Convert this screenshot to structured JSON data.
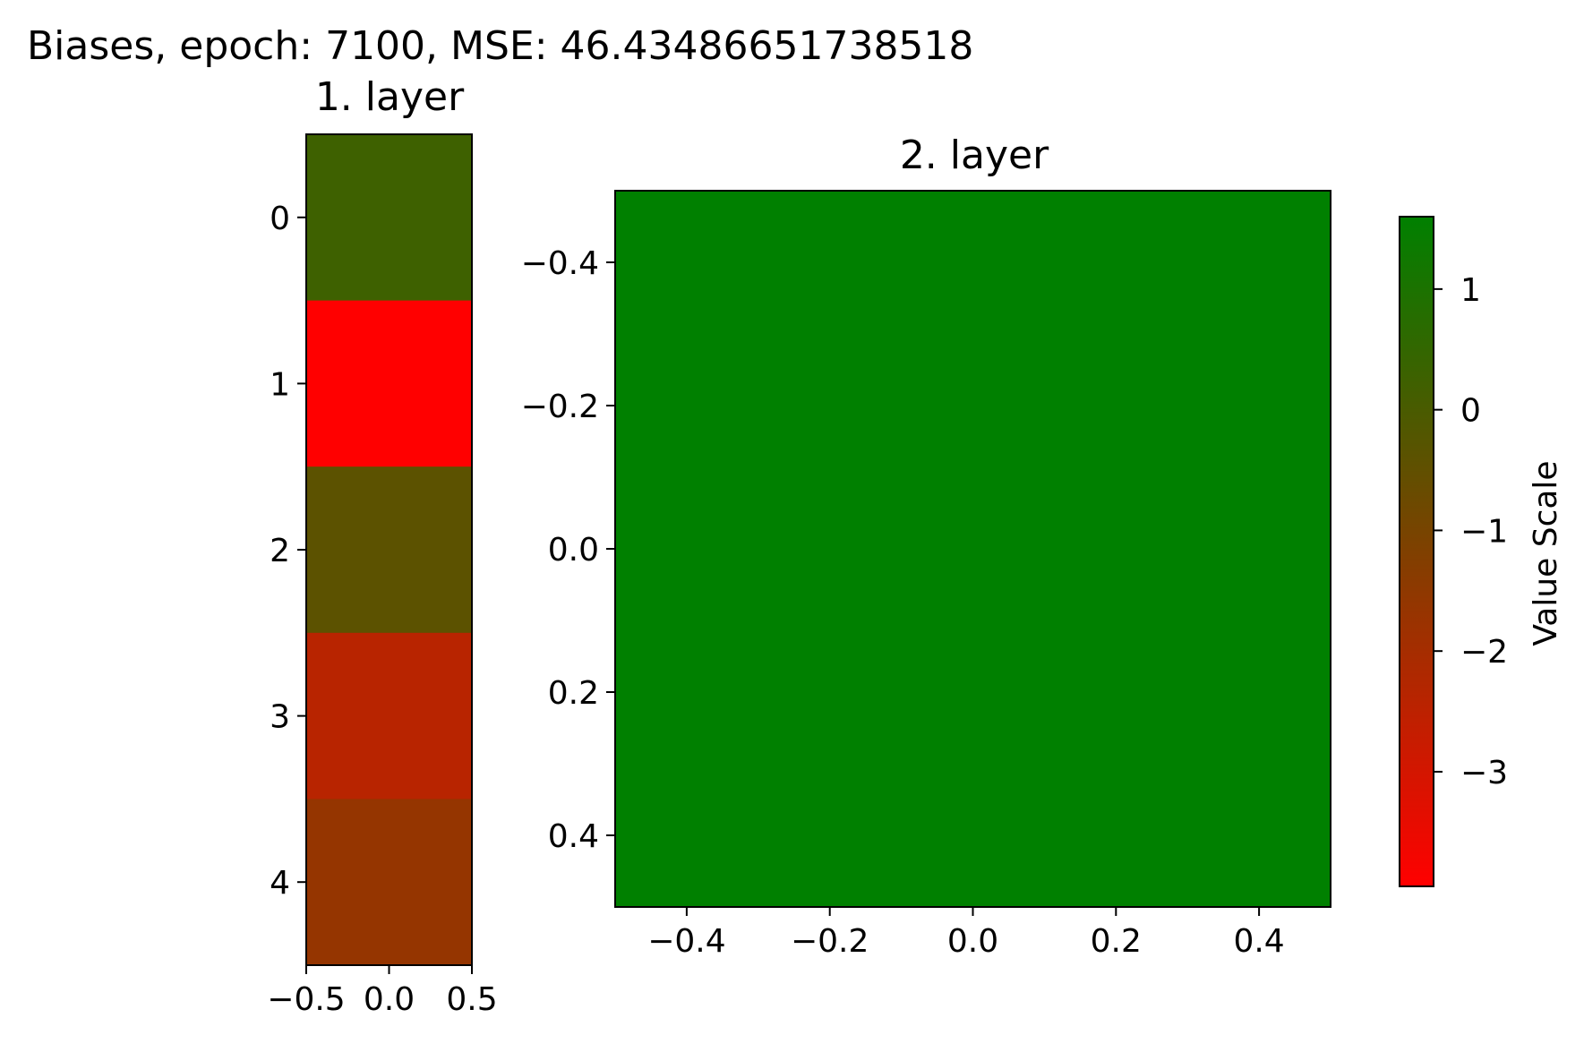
{
  "chart_data": {
    "type": "heatmap",
    "title": "Biases, epoch: 7100, MSE: 46.43486651738518",
    "panels": [
      {
        "title": "1. layer",
        "rows": 5,
        "cols": 1,
        "values": [
          [
            0.25
          ],
          [
            -3.95
          ],
          [
            -0.4
          ],
          [
            -2.4
          ],
          [
            -1.65
          ]
        ],
        "xlim": [
          -0.5,
          0.5
        ],
        "ylim": [
          4.5,
          -0.5
        ],
        "xticks": [
          -0.5,
          0.0,
          0.5
        ],
        "xtick_labels": [
          "−0.5",
          "0.0",
          "0.5"
        ],
        "yticks": [
          0,
          1,
          2,
          3,
          4
        ],
        "ytick_labels": [
          "0",
          "1",
          "2",
          "3",
          "4"
        ]
      },
      {
        "title": "2. layer",
        "rows": 1,
        "cols": 1,
        "values": [
          [
            1.6
          ]
        ],
        "xlim": [
          -0.5,
          0.5
        ],
        "ylim": [
          0.5,
          -0.5
        ],
        "xticks": [
          -0.4,
          -0.2,
          0.0,
          0.2,
          0.4
        ],
        "xtick_labels": [
          "−0.4",
          "−0.2",
          "0.0",
          "0.2",
          "0.4"
        ],
        "yticks": [
          -0.4,
          -0.2,
          0.0,
          0.2,
          0.4
        ],
        "ytick_labels": [
          "−0.4",
          "−0.2",
          "0.0",
          "0.2",
          "0.4"
        ]
      }
    ],
    "colorbar": {
      "label": "Value Scale",
      "vmin": -3.95,
      "vmax": 1.6,
      "ticks": [
        1,
        0,
        -1,
        -2,
        -3
      ],
      "tick_labels": [
        "1",
        "0",
        "−1",
        "−2",
        "−3"
      ],
      "colormap": [
        "#ff0000",
        "#008000"
      ]
    }
  }
}
